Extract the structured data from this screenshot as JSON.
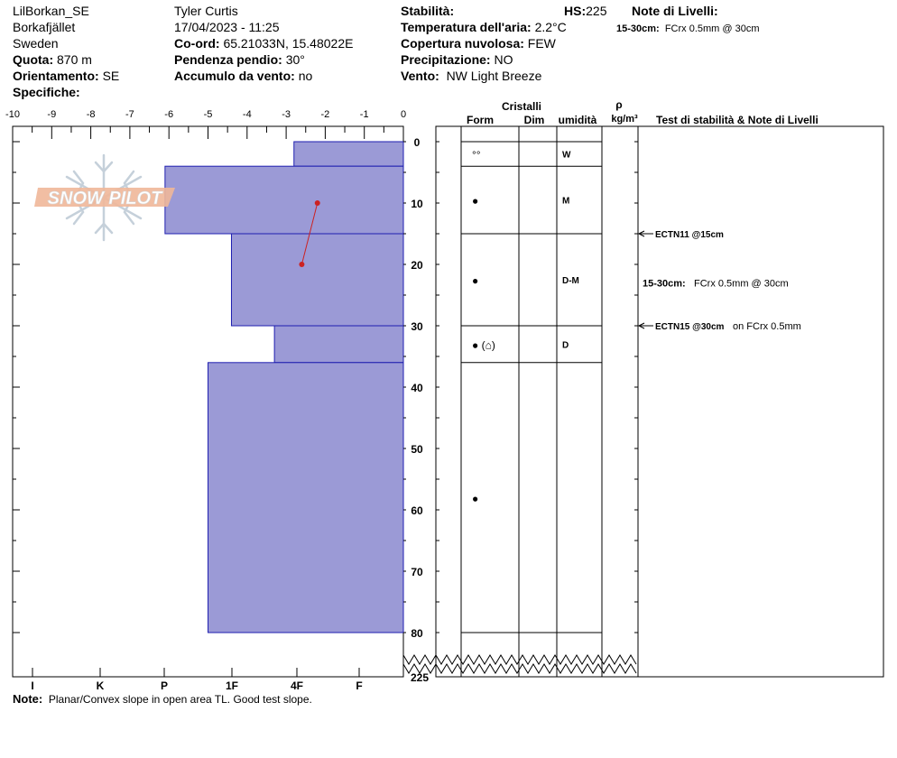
{
  "header": {
    "site": "LilBorkan_SE",
    "location": "Borkafjället",
    "country": "Sweden",
    "elevation_label": "Quota:",
    "elevation_value": "870 m",
    "aspect_label": "Orientamento:",
    "aspect_value": "SE",
    "specifics_label": "Specifiche:",
    "observer": "Tyler Curtis",
    "datetime": "17/04/2023 - 11:25",
    "coord_label": "Co-ord:",
    "coord_value": "65.21033N, 15.48022E",
    "slope_label": "Pendenza pendio:",
    "slope_value": "30°",
    "wind_loading_label": "Accumulo da vento:",
    "wind_loading_value": "no",
    "stability_label": "Stabilità:",
    "hs_label": "HS:",
    "hs_value": "225",
    "air_temp_label": "Temperatura dell'aria:",
    "air_temp_value": "2.2°C",
    "sky_label": "Copertura nuvolosa:",
    "sky_value": "FEW",
    "precip_label": "Precipitazione:",
    "precip_value": "NO",
    "wind_label": "Vento:",
    "wind_value": "NW Light Breeze",
    "layer_notes_title": "Note di Livelli:",
    "layer_notes_depth": "15-30cm:",
    "layer_notes_text": "FCrx 0.5mm @ 30cm"
  },
  "logo": {
    "text": "SNOW PILOT"
  },
  "profile": {
    "temp_ticks": [
      "-10",
      "-9",
      "-8",
      "-7",
      "-6",
      "-5",
      "-4",
      "-3",
      "-2",
      "-1",
      "0"
    ],
    "temp_min": -10,
    "temp_max": 0,
    "depth_ticks": [
      "0",
      "10",
      "20",
      "30",
      "40",
      "50",
      "60",
      "70",
      "80"
    ],
    "depth_bottom_label": "225",
    "depth_max_display": 80,
    "hardness_labels": [
      "I",
      "K",
      "P",
      "1F",
      "4F",
      "F"
    ],
    "hardness_layers": [
      {
        "top": 0,
        "bottom": 4,
        "temp_equiv": -2.8
      },
      {
        "top": 4,
        "bottom": 15,
        "temp_equiv": -6.1
      },
      {
        "top": 15,
        "bottom": 30,
        "temp_equiv": -4.4
      },
      {
        "top": 30,
        "bottom": 36,
        "temp_equiv": -3.3
      },
      {
        "top": 36,
        "bottom": 80,
        "temp_equiv": -5.0
      }
    ],
    "temperature_points": [
      {
        "depth": 10,
        "temp": -2.2
      },
      {
        "depth": 20,
        "temp": -2.6
      }
    ],
    "colors": {
      "layer_fill": "#9b9ad6",
      "layer_stroke": "#1f1fb0",
      "temp_line": "#cc2222"
    }
  },
  "table": {
    "crystals_header": "Cristalli",
    "form_header": "Form",
    "size_header": "Dim",
    "moisture_header": "umidità",
    "density_symbol": "ρ",
    "density_unit": "kg/m³",
    "tests_header": "Test di stabilità & Note di Livelli",
    "layer_boundaries": [
      0,
      4,
      15,
      30,
      36,
      80
    ],
    "rows": [
      {
        "form": "°°",
        "moisture": "W",
        "depth": 2
      },
      {
        "form": "●",
        "moisture": "M",
        "depth": 9.5
      },
      {
        "form": "●",
        "moisture": "D-M",
        "depth": 22.5
      },
      {
        "form": "● (⌂)",
        "moisture": "D",
        "depth": 33
      },
      {
        "form": "●",
        "moisture": "",
        "depth": 58
      }
    ],
    "tests": [
      {
        "depth": 15,
        "label": "ECTN11 @15cm",
        "extra": ""
      },
      {
        "depth": 30,
        "label": "ECTN15 @30cm",
        "extra": "on FCrx 0.5mm"
      }
    ],
    "layer_note": {
      "depth": 23,
      "label": "15-30cm:",
      "text": "FCrx 0.5mm @ 30cm"
    }
  },
  "footer": {
    "note_label": "Note:",
    "note_text": "Planar/Convex slope in open area TL. Good test slope."
  }
}
